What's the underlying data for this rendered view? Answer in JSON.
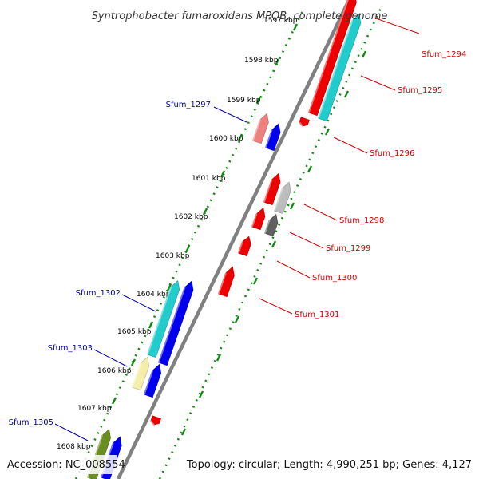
{
  "title": "Syntrophobacter fumaroxidans MPOB, complete genome",
  "accession": "Accession: NC_008554",
  "summary": "Topology: circular; Length: 4,990,251 bp; Genes: 4,127",
  "ruler_marks": [
    "1598 kbp",
    "1599 kbp",
    "1600 kbp",
    "1601 kbp",
    "1602 kbp",
    "1603 kbp",
    "1604 kbp",
    "1605 kbp",
    "1606 kbp",
    "1607 kbp",
    "1608 kbp"
  ],
  "colors": {
    "forward_label": "#cc0000",
    "reverse_label": "#0000aa",
    "red": "#ee0000",
    "pink": "#ee8080",
    "blue": "#0000ee",
    "cyan": "#22cccc",
    "gray": "#bdbdbd",
    "dark_gray": "#606060",
    "pale_yellow": "#f4eeaa",
    "olive": "#6b8e23",
    "backbone": "#808080",
    "ruler": "#118811"
  },
  "gene_labels": {
    "sfum_1294": "Sfum_1294",
    "sfum_1295": "Sfum_1295",
    "sfum_1296": "Sfum_1296",
    "sfum_1297": "Sfum_1297",
    "sfum_1298": "Sfum_1298",
    "sfum_1299": "Sfum_1299",
    "sfum_1300": "Sfum_1300",
    "sfum_1301": "Sfum_1301",
    "sfum_1302": "Sfum_1302",
    "sfum_1303": "Sfum_1303",
    "sfum_1305": "Sfum_1305"
  }
}
